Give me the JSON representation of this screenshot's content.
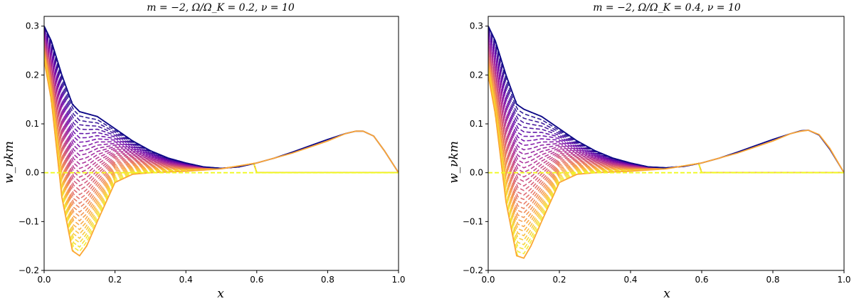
{
  "figure": {
    "background": "#ffffff"
  },
  "chart_data": [
    {
      "type": "line",
      "title": "m = −2,  Ω/Ω_K = 0.2,  ν = 10",
      "xlabel": "x",
      "ylabel": "w_νkm",
      "xlim": [
        0.0,
        1.0
      ],
      "ylim": [
        -0.2,
        0.32
      ],
      "x_ticks": [
        "0.0",
        "0.2",
        "0.4",
        "0.6",
        "0.8",
        "1.0"
      ],
      "y_ticks": [
        "−0.2",
        "−0.1",
        "0.0",
        "0.1",
        "0.2",
        "0.3"
      ],
      "grid": false,
      "legend": "none",
      "colormap": [
        "#0d0887",
        "#6a00a8",
        "#b12a90",
        "#e16462",
        "#fca636",
        "#f0f921"
      ],
      "series": [
        {
          "style": "solid",
          "color": "#0d0887",
          "x": [
            0,
            0.02,
            0.05,
            0.08,
            0.1,
            0.15,
            0.2,
            0.25,
            0.3,
            0.35,
            0.4,
            0.45,
            0.5,
            0.55,
            0.6,
            0.65,
            0.7,
            0.75,
            0.8,
            0.85,
            0.88,
            0.9,
            0.93,
            0.96,
            1.0
          ],
          "y": [
            0.3,
            0.27,
            0.2,
            0.14,
            0.125,
            0.115,
            0.09,
            0.065,
            0.045,
            0.03,
            0.02,
            0.012,
            0.009,
            0.012,
            0.02,
            0.03,
            0.042,
            0.055,
            0.068,
            0.08,
            0.085,
            0.085,
            0.075,
            0.045,
            0.0
          ]
        },
        {
          "style": "solid",
          "color": "#fca636",
          "x": [
            0,
            0.02,
            0.05,
            0.08,
            0.1,
            0.12,
            0.15,
            0.2,
            0.25,
            0.3,
            0.4,
            0.5,
            0.6,
            0.7,
            0.8,
            0.85,
            0.88,
            0.9,
            0.93,
            0.96,
            1.0
          ],
          "y": [
            0.23,
            0.15,
            -0.05,
            -0.16,
            -0.17,
            -0.15,
            -0.1,
            -0.02,
            -0.003,
            0.0,
            0.003,
            0.008,
            0.02,
            0.04,
            0.065,
            0.08,
            0.085,
            0.085,
            0.075,
            0.045,
            0.0
          ]
        },
        {
          "style": "dashed",
          "color": "#f0f921",
          "x": [
            0,
            0.2,
            0.4,
            0.6,
            0.8,
            1.0
          ],
          "y": [
            0,
            0,
            0,
            0,
            0,
            0
          ]
        }
      ]
    },
    {
      "type": "line",
      "title": "m = −2,  Ω/Ω_K = 0.4,  ν = 10",
      "xlabel": "x",
      "ylabel": "w_νkm",
      "xlim": [
        0.0,
        1.0
      ],
      "ylim": [
        -0.2,
        0.32
      ],
      "x_ticks": [
        "0.0",
        "0.2",
        "0.4",
        "0.6",
        "0.8",
        "1.0"
      ],
      "y_ticks": [
        "−0.2",
        "−0.1",
        "0.0",
        "0.1",
        "0.2",
        "0.3"
      ],
      "grid": false,
      "legend": "none",
      "colormap": [
        "#0d0887",
        "#6a00a8",
        "#b12a90",
        "#e16462",
        "#fca636",
        "#f0f921"
      ],
      "series": [
        {
          "style": "solid",
          "color": "#0d0887",
          "x": [
            0,
            0.02,
            0.05,
            0.08,
            0.1,
            0.15,
            0.2,
            0.25,
            0.3,
            0.35,
            0.4,
            0.45,
            0.5,
            0.55,
            0.6,
            0.65,
            0.7,
            0.75,
            0.8,
            0.85,
            0.88,
            0.9,
            0.93,
            0.96,
            1.0
          ],
          "y": [
            0.3,
            0.27,
            0.2,
            0.14,
            0.13,
            0.115,
            0.09,
            0.065,
            0.045,
            0.03,
            0.02,
            0.012,
            0.01,
            0.013,
            0.02,
            0.03,
            0.042,
            0.055,
            0.068,
            0.08,
            0.086,
            0.087,
            0.077,
            0.048,
            0.0
          ]
        },
        {
          "style": "solid",
          "color": "#fca636",
          "x": [
            0,
            0.02,
            0.05,
            0.08,
            0.1,
            0.12,
            0.15,
            0.2,
            0.25,
            0.3,
            0.4,
            0.5,
            0.6,
            0.7,
            0.8,
            0.85,
            0.88,
            0.9,
            0.93,
            0.96,
            1.0
          ],
          "y": [
            0.2,
            0.12,
            -0.06,
            -0.17,
            -0.175,
            -0.15,
            -0.1,
            -0.02,
            -0.003,
            0.0,
            0.003,
            0.008,
            0.02,
            0.04,
            0.065,
            0.08,
            0.085,
            0.087,
            0.078,
            0.05,
            0.0
          ]
        },
        {
          "style": "dashed",
          "color": "#f0f921",
          "x": [
            0,
            0.2,
            0.4,
            0.6,
            0.8,
            1.0
          ],
          "y": [
            0,
            0,
            0,
            0,
            0,
            0
          ]
        }
      ]
    }
  ]
}
